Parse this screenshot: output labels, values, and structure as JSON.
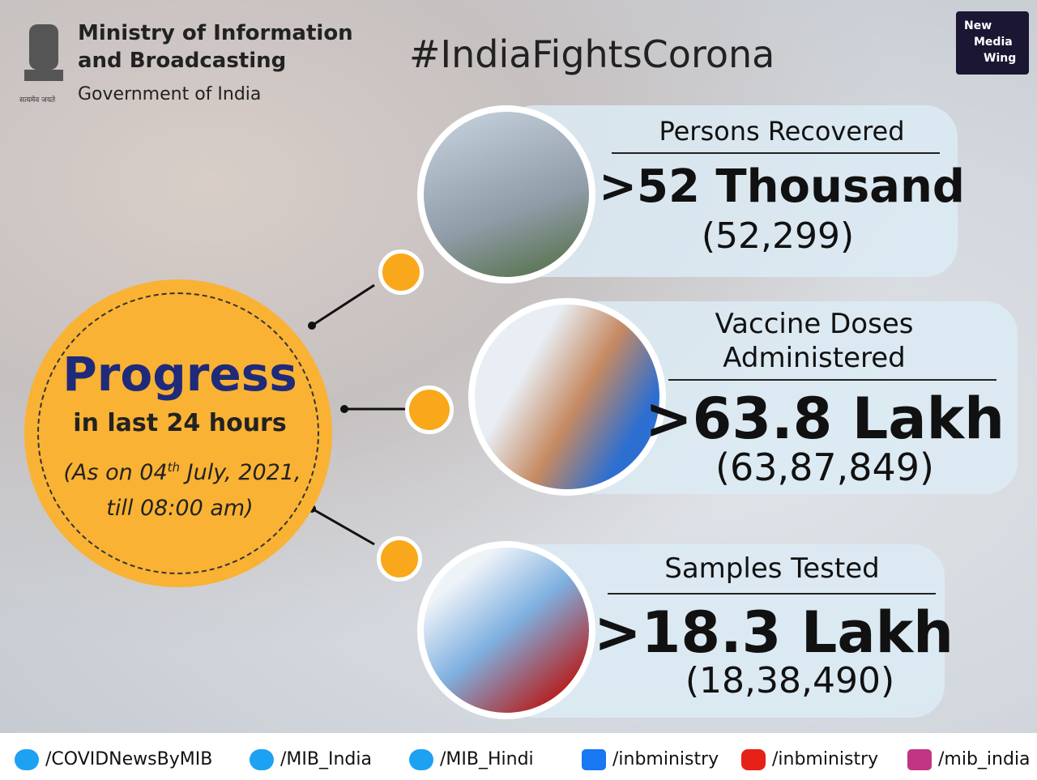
{
  "header": {
    "ministry_line1": "Ministry of Information",
    "ministry_line2": "and Broadcasting",
    "government": "Government of India",
    "motto": "सत्यमेव जयते",
    "hashtag": "#IndiaFightsCorona",
    "logo": [
      "New",
      "Media",
      "Wing"
    ]
  },
  "progress": {
    "title": "Progress",
    "subtitle": "in last 24 hours",
    "date_prefix": "(As on 04",
    "date_sup": "th",
    "date_suffix": " July, 2021,",
    "time": "till 08:00 am)"
  },
  "stats": [
    {
      "title_lines": [
        "Persons Recovered"
      ],
      "headline": ">52 Thousand",
      "exact": "(52,299)"
    },
    {
      "title_lines": [
        "Vaccine Doses",
        "Administered"
      ],
      "headline": ">63.8 Lakh",
      "exact": "(63,87,849)"
    },
    {
      "title_lines": [
        "Samples Tested"
      ],
      "headline": ">18.3 Lakh",
      "exact": "(18,38,490)"
    }
  ],
  "footer": [
    {
      "platform": "twitter",
      "handle": "/COVIDNewsByMIB"
    },
    {
      "platform": "twitter",
      "handle": "/MIB_India"
    },
    {
      "platform": "twitter",
      "handle": "/MIB_Hindi"
    },
    {
      "platform": "facebook",
      "handle": "/inbministry"
    },
    {
      "platform": "youtube",
      "handle": "/inbministry"
    },
    {
      "platform": "instagram",
      "handle": "/mib_india"
    }
  ]
}
